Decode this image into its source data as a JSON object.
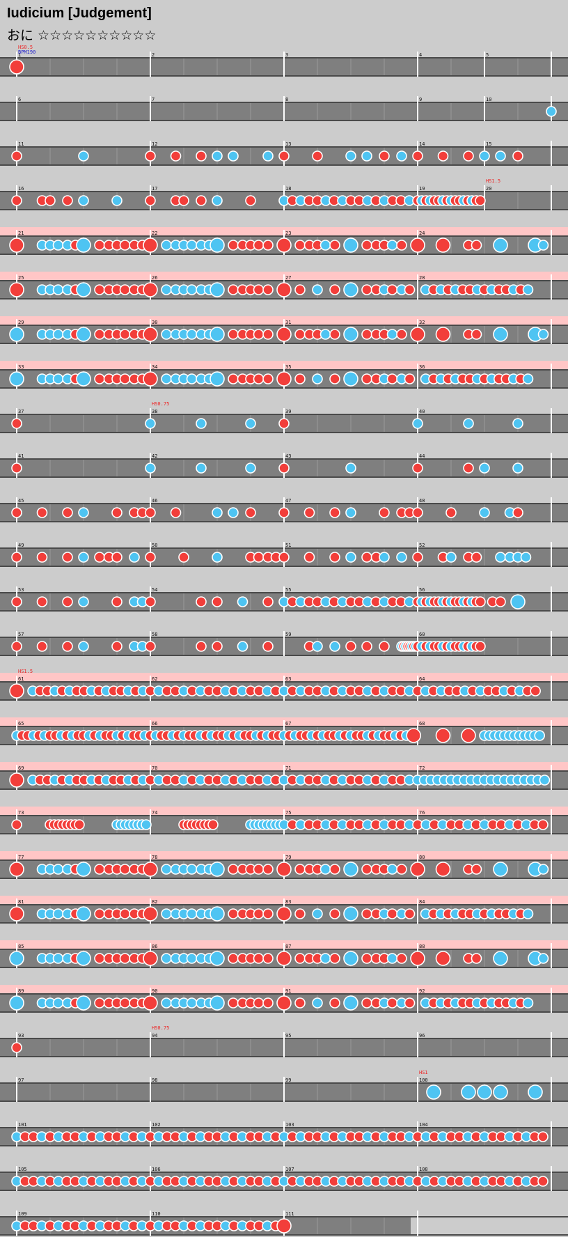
{
  "title": "Iudicium [Judgement]",
  "difficulty": "おに ☆☆☆☆☆☆☆☆☆☆",
  "colors": {
    "background": "#cccccc",
    "lane": "#7f7f7f",
    "lane_edge": "#4a4a4a",
    "gogo_band": "#ffc6c6",
    "don": "#f23e3a",
    "ka": "#4ec4f2",
    "event_text": "#ee2222",
    "bpm_text": "#2222cc"
  },
  "icons": [
    "don-note-circle",
    "ka-note-circle",
    "big-don-note-circle",
    "big-ka-note-circle"
  ],
  "chart_data": {
    "type": "table",
    "measures_per_row": 4,
    "events": [
      {
        "measure": 1,
        "text": "HS0.5"
      },
      {
        "measure": 1,
        "text": "BPM190"
      },
      {
        "measure": 20,
        "text": "HS1.5"
      },
      {
        "measure": 38,
        "text": "HS0.75"
      },
      {
        "measure": 61,
        "text": "HS1.5"
      },
      {
        "measure": 94,
        "text": "HS0.75"
      },
      {
        "measure": 100,
        "text": "HS1"
      }
    ],
    "rows": [
      {
        "start": 1,
        "measures": 5,
        "gogo": false,
        "notes": "D:0;"
      },
      {
        "start": 6,
        "measures": 5,
        "gogo": false,
        "notes": "r:4|0-0.9|12|k;"
      },
      {
        "start": 11,
        "measures": 5,
        "gogo": false,
        "notes": "d:0,1;k:0.5;d:1.19,1.38;k:1.5,1.62;k:1.88;d:2,2.25;k:2.5,2.62;d:2.75;k:2.88;d:3,3.19,3.38;k:3.5,3.62;d:3.75"
      },
      {
        "start": 16,
        "measures": 5,
        "gogo": false,
        "notes": "d:0,0.19,0.25,0.38;k:0.5,0.75;d:1,1.19,1.25,1.38;k:1.5;d:1.75;r:2|0-1|16|m;r:3|0-0.5|16|m"
      },
      {
        "start": 21,
        "measures": 4,
        "gogo": true,
        "notes": "D:0;p:a"
      },
      {
        "start": 25,
        "measures": 4,
        "gogo": true,
        "notes": "D:0;p:b"
      },
      {
        "start": 29,
        "measures": 4,
        "gogo": true,
        "notes": "K:0;p:a"
      },
      {
        "start": 33,
        "measures": 4,
        "gogo": true,
        "notes": "K:0;p:b"
      },
      {
        "start": 37,
        "measures": 4,
        "gogo": false,
        "notes": "d:0;k:1,1.38,1.75;d:2;k:3,3.38,3.75"
      },
      {
        "start": 41,
        "measures": 4,
        "gogo": false,
        "notes": "d:0;k:1,1.38,1.75;d:2;k:2.5;d:3,3.38;k:3.5,3.75"
      },
      {
        "start": 45,
        "measures": 4,
        "gogo": false,
        "notes": "d:0,0.19,0.38;k:0.5;d:0.75,0.88,0.94;d:1,1.19;k:1.5,1.62;d:1.75;d:2,2.19,2.38;k:2.5;d:2.75,2.88,2.94;d:3,3.25;k:3.5,3.69;d:3.75"
      },
      {
        "start": 49,
        "measures": 4,
        "gogo": false,
        "notes": "d:0,0.19,0.38;k:0.5;d:0.62,0.69,0.75;k:0.88;d:1,1.25;k:1.5;d:1.75,1.81,1.88,1.94;d:2,2.19,2.38;k:2.5;d:2.62,2.69;k:2.75,2.88;d:3,3.19;k:3.25;d:3.38,3.44;k:3.62,3.69,3.75,3.81"
      },
      {
        "start": 53,
        "measures": 4,
        "gogo": false,
        "notes": "d:0,0.19,0.38;k:0.5;d:0.75;k:0.88,0.94;d:1;d:1.38,1.5;k:1.69;d:1.88;r:2|0-1|16|m;r:3|0-0.5|16|m;d:3.56,3.62;K:3.75"
      },
      {
        "start": 57,
        "measures": 4,
        "gogo": false,
        "notes": "d:0,0.19,0.38;k:0.5;d:0.75;k:0.88,0.94;d:1;d:1.38,1.5;k:1.69;d:1.88;d:2.19;k:2.25,2.38;d:2.5,2.62,2.75;r:2|0.88-1|8|m;r:3|0-0.5|16|m"
      },
      {
        "start": 61,
        "measures": 4,
        "gogo": true,
        "notes": "D:0;r:0|0.12-1|16|m;r:1|0-1|16|m;r:2|0-1|16|m;r:3|0-0.94|16|m"
      },
      {
        "start": 65,
        "measures": 4,
        "gogo": true,
        "notes": "r:0|0-1|24|m;r:1|0-1|24|m;r:2|0-1|24|m;D:2.97;D:3.19;D:3.38;r:3|0.5-0.95|12|k"
      },
      {
        "start": 69,
        "measures": 4,
        "gogo": true,
        "notes": "D:0;r:0|0.12-1|16|m;r:1|0-1|16|m;r:2|0-1|16|m;r:3|0-1|20|k"
      },
      {
        "start": 73,
        "measures": 4,
        "gogo": true,
        "notes": "d:0;r:0|0.25-0.5|8|d;r:0|0.75-1|8|k;r:1|0.25-0.5|8|d;r:1|0.75-1|8|k;r:2|0-1|16|m;r:3|0-1|16|m"
      },
      {
        "start": 77,
        "measures": 4,
        "gogo": true,
        "notes": "D:0;p:a"
      },
      {
        "start": 81,
        "measures": 4,
        "gogo": true,
        "notes": "D:0;p:b"
      },
      {
        "start": 85,
        "measures": 4,
        "gogo": true,
        "notes": "K:0;p:a"
      },
      {
        "start": 89,
        "measures": 4,
        "gogo": true,
        "notes": "K:0;p:b"
      },
      {
        "start": 93,
        "measures": 4,
        "gogo": false,
        "notes": "d:0"
      },
      {
        "start": 97,
        "measures": 4,
        "gogo": false,
        "notes": "K:3.12,3.38,3.5,3.62,3.88"
      },
      {
        "start": 101,
        "measures": 4,
        "gogo": false,
        "notes": "r:0|0-1|16|m;r:1|0-1|16|m;r:2|0-1|16|m;r:3|0-1|16|m"
      },
      {
        "start": 105,
        "measures": 4,
        "gogo": false,
        "notes": "r:0|0-1|16|m;r:1|0-1|16|m;r:2|0-1|16|m;r:3|0-1|16|m"
      },
      {
        "start": 109,
        "measures": 3,
        "gogo": false,
        "notes": "r:0|0-1|16|m;r:1|0-1|16|m;D:2"
      }
    ]
  }
}
